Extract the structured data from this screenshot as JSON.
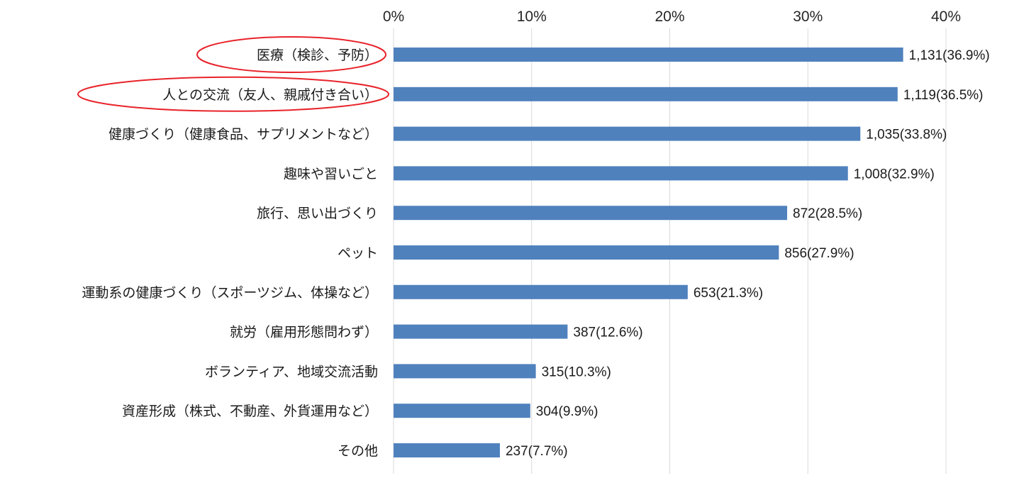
{
  "chart_data": {
    "type": "bar",
    "orientation": "horizontal",
    "title": "",
    "xlabel": "",
    "ylabel": "",
    "xlim": [
      0,
      40
    ],
    "x_ticks": [
      "0%",
      "10%",
      "20%",
      "30%",
      "40%"
    ],
    "x_tick_values": [
      0,
      10,
      20,
      30,
      40
    ],
    "x_axis_position": "top",
    "grid": true,
    "legend": "none",
    "bar_color": "#4f81bd",
    "grid_color": "#d9d9d9",
    "highlight_color": "#e8232a",
    "categories": [
      "医療（検診、予防）",
      "人との交流（友人、親戚付き合い）",
      "健康づくり（健康食品、サプリメントなど）",
      "趣味や習いごと",
      "旅行、思い出づくり",
      "ペット",
      "運動系の健康づくり（スポーツジム、体操など）",
      "就労（雇用形態問わず）",
      "ボランティア、地域交流活動",
      "資産形成（株式、不動産、外貨運用など）",
      "その他"
    ],
    "values": [
      36.9,
      36.5,
      33.8,
      32.9,
      28.5,
      27.9,
      21.3,
      12.6,
      10.3,
      9.9,
      7.7
    ],
    "counts": [
      1131,
      1119,
      1035,
      1008,
      872,
      856,
      653,
      387,
      315,
      304,
      237
    ],
    "data_labels": [
      "1,131(36.9%)",
      "1,119(36.5%)",
      "1,035(33.8%)",
      "1,008(32.9%)",
      "872(28.5%)",
      "856(27.9%)",
      "653(21.3%)",
      "387(12.6%)",
      "315(10.3%)",
      "304(9.9%)",
      "237(7.7%)"
    ],
    "highlighted_categories": [
      0,
      1
    ]
  }
}
